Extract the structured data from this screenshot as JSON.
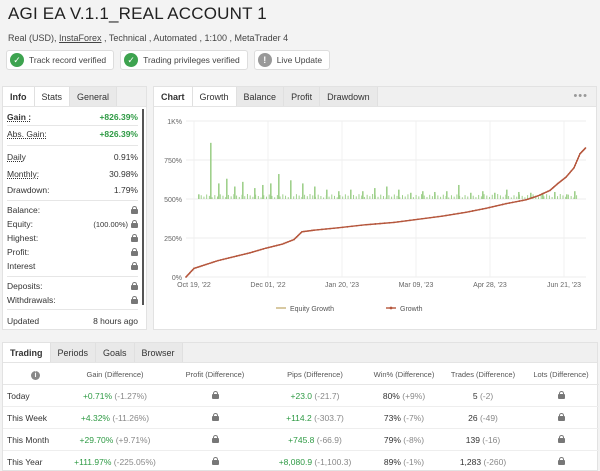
{
  "header": {
    "title": "AGI EA V.1.1_REAL ACCOUNT 1",
    "subtitle_pre": "Real (USD), ",
    "subtitle_link": "InstaForex",
    "subtitle_post": " , Technical , Automated , 1:100 , MetaTrader 4"
  },
  "badges": [
    {
      "label": "Track record verified",
      "icon": "check-icon",
      "color": "#3da34f"
    },
    {
      "label": "Trading privileges verified",
      "icon": "check-icon",
      "color": "#3da34f"
    },
    {
      "label": "Live Update",
      "icon": "exclamation-icon",
      "color": "#999999"
    }
  ],
  "info_tabs": [
    "Info",
    "Stats",
    "General"
  ],
  "info": {
    "gain": {
      "label": "Gain :",
      "value": "+826.39%"
    },
    "abs_gain": {
      "label": "Abs. Gain:",
      "value": "+826.39%"
    },
    "daily": {
      "label": "Daily",
      "value": "0.91%"
    },
    "monthly": {
      "label": "Monthly:",
      "value": "30.98%"
    },
    "drawdown": {
      "label": "Drawdown:",
      "value": "1.79%"
    },
    "balance": {
      "label": "Balance:"
    },
    "equity": {
      "label": "Equity:",
      "value": "(100.00%)"
    },
    "highest": {
      "label": "Highest:"
    },
    "profit": {
      "label": "Profit:"
    },
    "interest": {
      "label": "Interest"
    },
    "deposits": {
      "label": "Deposits:"
    },
    "withdrawals": {
      "label": "Withdrawals:"
    },
    "updated": {
      "label": "Updated",
      "value": "8 hours ago"
    }
  },
  "chart_tabs": [
    "Chart",
    "Growth",
    "Balance",
    "Profit",
    "Drawdown"
  ],
  "chart_data": {
    "type": "line",
    "y_ticks": [
      "0%",
      "250%",
      "500%",
      "750%",
      "1K%"
    ],
    "ylim": [
      0,
      1000
    ],
    "x_ticks": [
      "Oct 19, '22",
      "Dec 01, '22",
      "Jan 20, '23",
      "Mar 09, '23",
      "Apr 28, '23",
      "Jun 21, '23"
    ],
    "legend": [
      "Equity Growth",
      "Growth"
    ],
    "series_color_equity": "#c8b27a",
    "series_color_growth": "#b5563c",
    "bar_color": "#9fd08c",
    "growth_points": [
      [
        0,
        0
      ],
      [
        0.02,
        55
      ],
      [
        0.05,
        80
      ],
      [
        0.08,
        105
      ],
      [
        0.12,
        130
      ],
      [
        0.16,
        155
      ],
      [
        0.2,
        185
      ],
      [
        0.24,
        210
      ],
      [
        0.27,
        240
      ],
      [
        0.29,
        290
      ],
      [
        0.32,
        300
      ],
      [
        0.38,
        315
      ],
      [
        0.45,
        335
      ],
      [
        0.52,
        350
      ],
      [
        0.58,
        370
      ],
      [
        0.64,
        390
      ],
      [
        0.7,
        415
      ],
      [
        0.75,
        440
      ],
      [
        0.8,
        470
      ],
      [
        0.85,
        495
      ],
      [
        0.88,
        520
      ],
      [
        0.91,
        555
      ],
      [
        0.93,
        600
      ],
      [
        0.95,
        640
      ],
      [
        0.97,
        700
      ],
      [
        0.985,
        790
      ],
      [
        1,
        830
      ]
    ],
    "daily_bars": [
      [
        0.03,
        30
      ],
      [
        0.06,
        360
      ],
      [
        0.08,
        100
      ],
      [
        0.1,
        130
      ],
      [
        0.12,
        80
      ],
      [
        0.14,
        110
      ],
      [
        0.17,
        70
      ],
      [
        0.19,
        90
      ],
      [
        0.21,
        100
      ],
      [
        0.23,
        160
      ],
      [
        0.26,
        120
      ],
      [
        0.29,
        100
      ],
      [
        0.32,
        80
      ],
      [
        0.35,
        60
      ],
      [
        0.38,
        50
      ],
      [
        0.41,
        60
      ],
      [
        0.44,
        50
      ],
      [
        0.47,
        70
      ],
      [
        0.5,
        80
      ],
      [
        0.53,
        60
      ],
      [
        0.56,
        40
      ],
      [
        0.59,
        50
      ],
      [
        0.62,
        45
      ],
      [
        0.65,
        50
      ],
      [
        0.68,
        90
      ],
      [
        0.71,
        40
      ],
      [
        0.74,
        50
      ],
      [
        0.77,
        40
      ],
      [
        0.8,
        60
      ],
      [
        0.83,
        45
      ],
      [
        0.86,
        40
      ],
      [
        0.89,
        40
      ],
      [
        0.92,
        45
      ],
      [
        0.95,
        30
      ],
      [
        0.97,
        50
      ]
    ]
  },
  "bottom_tabs": [
    "Trading",
    "Periods",
    "Goals",
    "Browser"
  ],
  "table": {
    "headers": [
      "Gain (Difference)",
      "Profit (Difference)",
      "Pips (Difference)",
      "Win% (Difference)",
      "Trades (Difference)",
      "Lots (Difference)"
    ],
    "rows": [
      {
        "period": "Today",
        "gain": "+0.71%",
        "gain_diff": "(-1.27%)",
        "pips": "+23.0",
        "pips_diff": "(-21.7)",
        "win": "80%",
        "win_diff": "(+9%)",
        "trades": "5",
        "trades_diff": "(-2)"
      },
      {
        "period": "This Week",
        "gain": "+4.32%",
        "gain_diff": "(-11.26%)",
        "pips": "+114.2",
        "pips_diff": "(-303.7)",
        "win": "73%",
        "win_diff": "(-7%)",
        "trades": "26",
        "trades_diff": "(-49)"
      },
      {
        "period": "This Month",
        "gain": "+29.70%",
        "gain_diff": "(+9.71%)",
        "pips": "+745.8",
        "pips_diff": "(-66.9)",
        "win": "79%",
        "win_diff": "(-8%)",
        "trades": "139",
        "trades_diff": "(-16)"
      },
      {
        "period": "This Year",
        "gain": "+111.97%",
        "gain_diff": "(-225.05%)",
        "pips": "+8,080.9",
        "pips_diff": "(-1,100.3)",
        "win": "89%",
        "win_diff": "(-1%)",
        "trades": "1,283",
        "trades_diff": "(-260)"
      }
    ]
  }
}
